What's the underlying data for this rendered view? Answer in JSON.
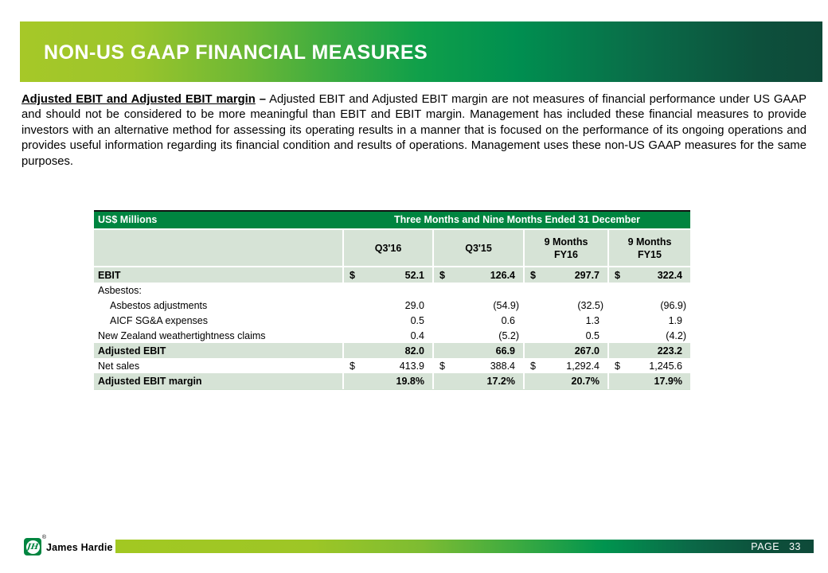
{
  "slide": {
    "title": "NON-US GAAP FINANCIAL MEASURES",
    "footer": {
      "page_label": "PAGE",
      "page_number": "33"
    },
    "colors": {
      "header_green": "#008540",
      "row_shade": "#D6E3D6",
      "banner_gradient_start": "#A6C828",
      "banner_gradient_end": "#0E4A39"
    }
  },
  "logo": {
    "monogram": "JH",
    "registered": "®",
    "company": "James Hardie"
  },
  "intro": {
    "lead": "Adjusted EBIT and Adjusted EBIT margin",
    "separator": "–",
    "body": "Adjusted EBIT and Adjusted EBIT margin are not measures of financial performance under US GAAP and should not be considered to be more meaningful than EBIT and EBIT margin. Management has included these financial measures to provide investors with an alternative method for assessing its operating results in a manner that is focused on the performance of its ongoing operations and provides useful information regarding its financial condition and results of operations. Management uses these non-US GAAP measures for the same purposes."
  },
  "main_table": {
    "units_header": "US$ Millions",
    "period_header": "Three Months and Nine Months Ended 31 December",
    "columns": [
      [
        "Q3'16",
        ""
      ],
      [
        "Q3'15",
        ""
      ],
      [
        "9 Months",
        "FY16"
      ],
      [
        "9 Months",
        "FY15"
      ]
    ],
    "rows": [
      {
        "label": "EBIT",
        "currency": "$",
        "values": [
          "52.1",
          "126.4",
          "297.7",
          "322.4"
        ]
      },
      {
        "label": "Asbestos:",
        "currency": "",
        "values": [
          "",
          "",
          "",
          ""
        ]
      },
      {
        "label": "Asbestos adjustments",
        "currency": "",
        "values": [
          "29.0",
          "(54.9)",
          "(32.5)",
          "(96.9)"
        ]
      },
      {
        "label": "AICF SG&A expenses",
        "currency": "",
        "values": [
          "0.5",
          "0.6",
          "1.3",
          "1.9"
        ]
      },
      {
        "label": "New Zealand weathertightness claims",
        "currency": "",
        "values": [
          "0.4",
          "(5.2)",
          "0.5",
          "(4.2)"
        ]
      },
      {
        "label": "Adjusted EBIT",
        "currency": "",
        "values": [
          "82.0",
          "66.9",
          "267.0",
          "223.2"
        ]
      },
      {
        "label": "Net sales",
        "currency": "$",
        "values": [
          "413.9",
          "388.4",
          "1,292.4",
          "1,245.6"
        ]
      },
      {
        "label": "Adjusted EBIT margin",
        "currency": "",
        "values": [
          "19.8%",
          "17.2%",
          "20.7%",
          "17.9%"
        ]
      }
    ]
  }
}
